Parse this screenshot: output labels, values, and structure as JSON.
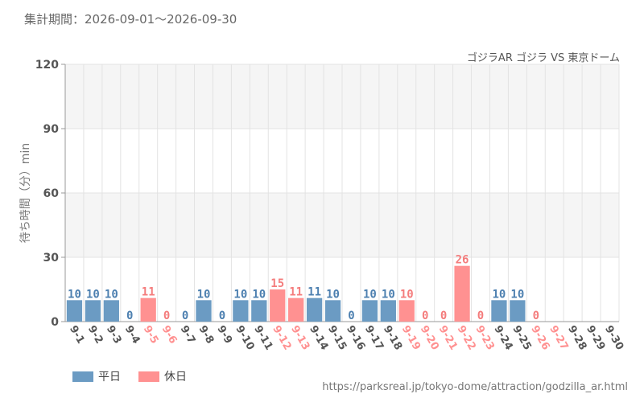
{
  "header": {
    "period": "集計期間：2026-09-01～2026-09-30"
  },
  "source_url": "https://parksreal.jp/tokyo-dome/attraction/godzilla_ar.html",
  "colors": {
    "weekday": "#6b9bc3",
    "holiday": "#ff9191",
    "weekday_label": "#4d80b0",
    "holiday_label": "#f47c7c",
    "band": "#f5f5f5",
    "grid": "#e3e3e3"
  },
  "chart_data": {
    "type": "bar",
    "title": "ゴジラAR ゴジラ VS 東京ドーム",
    "ylabel": "待ち時間（分）min",
    "ylim": [
      0,
      120
    ],
    "yticks": [
      0,
      30,
      60,
      90,
      120
    ],
    "grid": true,
    "legend_position": "bottom-left",
    "legend": [
      {
        "name": "平日",
        "kind": "weekday"
      },
      {
        "name": "休日",
        "kind": "holiday"
      }
    ],
    "categories": [
      "9-1",
      "9-2",
      "9-3",
      "9-4",
      "9-5",
      "9-6",
      "9-7",
      "9-8",
      "9-9",
      "9-10",
      "9-11",
      "9-12",
      "9-13",
      "9-14",
      "9-15",
      "9-16",
      "9-17",
      "9-18",
      "9-19",
      "9-20",
      "9-21",
      "9-22",
      "9-23",
      "9-24",
      "9-25",
      "9-26",
      "9-27",
      "9-28",
      "9-29",
      "9-30"
    ],
    "values": [
      10,
      10,
      10,
      0,
      11,
      0,
      0,
      10,
      0,
      10,
      10,
      15,
      11,
      11,
      10,
      0,
      10,
      10,
      10,
      0,
      0,
      26,
      0,
      10,
      10,
      0,
      null,
      null,
      null,
      null
    ],
    "day_type": [
      "weekday",
      "weekday",
      "weekday",
      "weekday",
      "holiday",
      "holiday",
      "weekday",
      "weekday",
      "weekday",
      "weekday",
      "weekday",
      "holiday",
      "holiday",
      "weekday",
      "weekday",
      "weekday",
      "weekday",
      "weekday",
      "holiday",
      "holiday",
      "holiday",
      "holiday",
      "holiday",
      "weekday",
      "weekday",
      "holiday",
      "holiday",
      "weekday",
      "weekday",
      "weekday"
    ]
  }
}
